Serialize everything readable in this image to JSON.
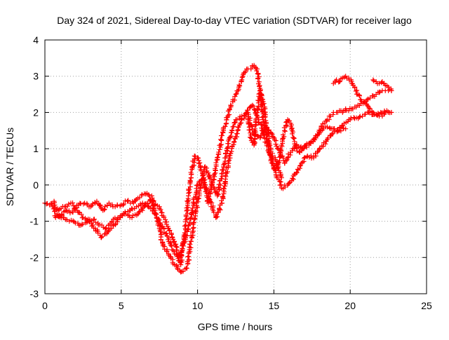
{
  "chart_data": {
    "type": "scatter",
    "title": "Day 324 of 2021, Sidereal Day-to-day VTEC variation (SDTVAR) for receiver lago",
    "xlabel": "GPS time / hours",
    "ylabel": "SDTVAR / TECUs",
    "xlim": [
      0,
      25
    ],
    "ylim": [
      -3,
      4
    ],
    "xticks": [
      0,
      5,
      10,
      15,
      20,
      25
    ],
    "yticks": [
      -3,
      -2,
      -1,
      0,
      1,
      2,
      3,
      4
    ],
    "grid": true,
    "legend": "none",
    "marker": "plus",
    "color": "#ff0000",
    "series": [
      {
        "x": [
          0.0,
          0.3,
          0.6,
          0.7,
          1.0,
          1.4,
          1.8,
          2.2,
          2.6,
          3.0,
          3.4,
          3.8,
          4.2,
          4.6,
          5.0,
          5.4,
          5.8,
          6.2,
          6.6,
          7.0,
          7.2,
          7.5,
          7.8,
          8.1,
          8.4,
          8.6,
          8.8,
          8.9,
          9.0,
          9.2,
          9.4,
          9.6,
          9.8,
          10.0,
          10.2,
          10.4,
          10.6,
          10.7,
          10.9,
          11.1,
          11.3,
          11.5,
          11.7,
          11.9,
          12.1,
          12.3,
          12.5,
          12.7,
          12.9,
          13.1,
          13.3,
          13.5,
          13.7,
          13.9,
          14.1,
          14.3,
          14.5,
          14.7,
          14.9,
          15.1,
          15.3,
          15.5,
          15.7,
          15.9,
          16.1,
          16.3,
          16.5,
          16.7,
          16.9,
          17.1,
          17.3,
          17.5,
          17.7,
          17.9,
          18.1,
          18.3,
          18.5,
          18.7,
          18.9,
          19.1,
          19.3,
          19.5,
          19.7,
          19.9,
          20.1,
          20.3,
          20.5,
          20.7,
          20.9,
          21.1,
          21.3,
          21.5,
          21.7,
          21.9,
          22.1,
          22.3,
          22.5,
          22.7
        ],
        "y": [
          -0.5,
          -0.55,
          -0.45,
          -0.9,
          -0.85,
          -0.7,
          -0.75,
          -0.55,
          -0.5,
          -0.6,
          -0.45,
          -0.7,
          -0.5,
          -0.6,
          -0.55,
          -0.45,
          -0.5,
          -0.35,
          -0.25,
          -0.3,
          -0.55,
          -0.6,
          -0.9,
          -1.2,
          -1.5,
          -1.7,
          -2.1,
          -2.2,
          -1.8,
          -1.2,
          -0.3,
          0.3,
          0.8,
          0.75,
          0.5,
          0.2,
          -0.3,
          -0.5,
          -0.1,
          0.3,
          0.7,
          1.1,
          1.5,
          1.8,
          2.1,
          2.3,
          2.5,
          2.7,
          2.9,
          3.1,
          3.2,
          3.2,
          3.3,
          3.2,
          2.6,
          1.8,
          1.4,
          0.9,
          0.6,
          0.4,
          0.6,
          1.1,
          1.5,
          1.8,
          1.7,
          1.3,
          1.0,
          0.9,
          1.0,
          1.1,
          1.15,
          1.2,
          1.3,
          1.4,
          1.6,
          1.7,
          1.8,
          1.9,
          2.0,
          2.0,
          2.05,
          2.0,
          2.1,
          2.05,
          2.1,
          2.15,
          2.2,
          2.25,
          2.3,
          2.35,
          2.4,
          2.45,
          2.5,
          2.55,
          2.6,
          2.6,
          2.6,
          2.6
        ]
      },
      {
        "x": [
          0.8,
          1.2,
          1.6,
          2.0,
          2.4,
          2.8,
          3.2,
          3.6,
          4.0,
          4.4,
          4.8,
          5.2,
          5.6,
          6.0,
          6.4,
          6.8,
          7.2,
          7.6,
          8.0,
          8.4,
          8.8,
          9.2,
          9.6,
          10.0,
          10.4,
          10.8,
          11.2,
          11.6,
          12.0,
          12.4,
          12.8,
          13.2,
          13.6,
          14.0,
          14.4,
          14.8,
          15.2,
          15.6,
          16.0,
          16.4,
          16.8,
          17.2,
          17.6,
          18.0,
          18.4,
          18.8,
          19.2,
          19.6,
          20.0,
          20.4,
          20.8,
          21.2,
          21.6,
          22.0,
          22.4,
          22.7
        ],
        "y": [
          -0.8,
          -0.9,
          -1.0,
          -1.05,
          -1.1,
          -1.0,
          -0.95,
          -1.1,
          -1.2,
          -1.0,
          -0.9,
          -0.8,
          -0.7,
          -0.6,
          -0.5,
          -0.6,
          -0.8,
          -1.1,
          -1.4,
          -1.8,
          -2.0,
          -1.5,
          -0.8,
          0.0,
          0.2,
          -0.4,
          -0.9,
          -0.5,
          0.6,
          1.2,
          1.7,
          2.0,
          2.2,
          1.8,
          1.3,
          0.8,
          0.2,
          -0.1,
          0.05,
          0.3,
          0.6,
          0.8,
          0.75,
          1.0,
          1.2,
          1.4,
          1.5,
          1.7,
          1.8,
          1.85,
          1.9,
          2.0,
          1.95,
          2.0,
          2.05,
          2.0
        ]
      },
      {
        "x": [
          0.5,
          0.9,
          1.3,
          1.7,
          2.1,
          2.5,
          2.9,
          3.3,
          3.7,
          4.1,
          4.5,
          4.9,
          5.3,
          5.7,
          6.1,
          6.5,
          6.9,
          7.3,
          7.7,
          8.1,
          8.5,
          8.9,
          9.3,
          9.7,
          10.1,
          10.5,
          10.9,
          11.3,
          11.7,
          12.1,
          12.5,
          12.9,
          13.3,
          13.7,
          14.1,
          14.5,
          14.9,
          15.3,
          15.7,
          16.1,
          16.5,
          16.9,
          17.3,
          17.7,
          18.1,
          18.5,
          18.9,
          19.3,
          19.7
        ],
        "y": [
          -0.6,
          -0.7,
          -0.6,
          -0.5,
          -0.7,
          -0.9,
          -1.0,
          -1.2,
          -1.45,
          -1.3,
          -1.1,
          -0.9,
          -0.8,
          -0.9,
          -0.8,
          -0.6,
          -0.4,
          -0.8,
          -1.6,
          -1.9,
          -2.2,
          -2.4,
          -2.3,
          -1.2,
          -0.2,
          0.5,
          0.1,
          -0.3,
          0.5,
          1.3,
          1.8,
          1.9,
          2.0,
          1.4,
          1.3,
          1.6,
          1.4,
          1.0,
          0.6,
          0.9,
          1.1,
          1.0,
          1.1,
          1.3,
          1.5,
          1.6,
          1.55,
          1.5,
          1.55
        ]
      },
      {
        "x": [
          18.9,
          19.1,
          19.3,
          19.5,
          19.7,
          19.9,
          20.1,
          20.3,
          20.5,
          20.7,
          20.9,
          21.1,
          21.3,
          21.5,
          21.7,
          21.9,
          22.1,
          22.3,
          22.5,
          22.7
        ],
        "y": [
          2.8,
          2.9,
          2.85,
          2.95,
          3.0,
          2.95,
          2.8,
          2.7,
          2.5,
          2.35,
          2.3,
          2.2,
          2.1,
          2.0,
          1.95,
          1.9,
          1.9,
          2.0,
          2.0,
          2.0
        ]
      },
      {
        "x": [
          13.3,
          13.5,
          13.7,
          13.9,
          14.1,
          14.3,
          14.5,
          14.7,
          14.9,
          15.1,
          15.3,
          15.5
        ],
        "y": [
          1.8,
          1.3,
          1.1,
          2.0,
          2.6,
          2.3,
          1.7,
          1.2,
          0.8,
          0.7,
          0.5,
          0.2
        ]
      },
      {
        "x": [
          21.5,
          21.7,
          21.9,
          22.1,
          22.3,
          22.5,
          22.7
        ],
        "y": [
          2.9,
          2.85,
          2.8,
          2.85,
          2.75,
          2.7,
          2.6
        ]
      }
    ]
  }
}
